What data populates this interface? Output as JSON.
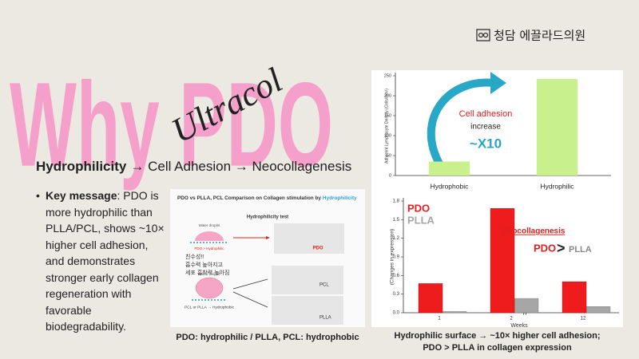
{
  "logo": "청담 에끌라드의원",
  "title": "Why PDO",
  "signature": "Ultracol",
  "heading": {
    "bold": "Hydrophilicity",
    "rest": "→ Cell Adhesion → Neocollagenesis"
  },
  "bullet": {
    "bold": "Key message",
    "text": ": PDO is more hydrophilic than PLLA/PCL, shows ~10× higher cell adhesion, and demonstrates stronger early collagen regeneration with favorable biodegradability."
  },
  "figure": {
    "title": "PDO vs PLLA, PCL Comparison on Collagen stimulation by",
    "title_highlight": "Hydrophilicity",
    "test_title": "Hydrophilicity test",
    "droplet_top": "Water droplet",
    "droplet_bottom": "Water droplet",
    "pdo_note": "PDO > Hydrophilic",
    "korean": [
      "친수성!!",
      "흡수력 높아지고",
      "세포 흡착력 높아짐"
    ],
    "other_note": "PCL or PLLA → Hydrophobic",
    "photo_labels": [
      "PDO",
      "PCL",
      "PLLA"
    ],
    "caption": "PDO: hydrophilic / PLLA, PCL: hydrophobic"
  },
  "right_caption": "Hydrophilic surface → ~10× higher cell adhesion; PDO > PLLA in collagen expression",
  "chart_data": [
    {
      "type": "bar",
      "y_label": "Adherent Lymphocyte Density (Cells/mm²)",
      "categories": [
        "Hydrophobic",
        "Hydrophilic"
      ],
      "values": [
        35,
        242
      ],
      "color": "#c8f08c",
      "ylim": [
        0,
        250
      ],
      "yticks": [
        0,
        50,
        100,
        150,
        200,
        250
      ],
      "annotations": [
        "Cell adhesion",
        "increase",
        "~X10"
      ]
    },
    {
      "type": "bar",
      "x_label": "Weeks",
      "y_label": "(Changes in expression)",
      "categories": [
        "1",
        "2",
        "12"
      ],
      "series": [
        {
          "name": "PDO",
          "color": "#ee1c1c",
          "values": [
            0.47,
            1.68,
            0.5
          ]
        },
        {
          "name": "PLLA",
          "color": "#a6a6a6",
          "values": [
            0.02,
            0.23,
            0.1
          ]
        }
      ],
      "ylim": [
        0,
        1.8
      ],
      "yticks": [
        {
          "value": 0,
          "label": "0.0"
        },
        0.3,
        0.6,
        0.9,
        1.2,
        1.5,
        1.8
      ],
      "annotations": [
        "Neocollagenesis",
        "PDO",
        ">",
        "PLLA"
      ]
    }
  ]
}
